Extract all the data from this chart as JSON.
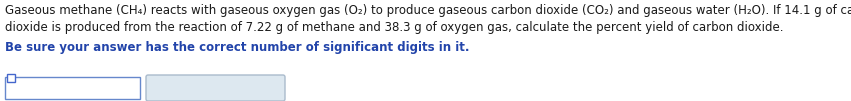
{
  "line1": "Gaseous methane (CH₄) reacts with gaseous oxygen gas (O₂) to produce gaseous carbon dioxide (CO₂) and gaseous water (H₂O). If 14.1 g of carbon",
  "line2": "dioxide is produced from the reaction of 7.22 g of methane and 38.3 g of oxygen gas, calculate the percent yield of carbon dioxide.",
  "line3": "Be sure your answer has the correct number of significant digits in it.",
  "bg_color": "#ffffff",
  "text_color": "#1a1a1a",
  "line3_color": "#2244aa",
  "font_size": 8.5,
  "box1_border_color": "#6688cc",
  "box1_face_color": "#ffffff",
  "box2_border_color": "#aabbcc",
  "box2_face_color": "#dde8f0",
  "icon_color": "#4466cc"
}
